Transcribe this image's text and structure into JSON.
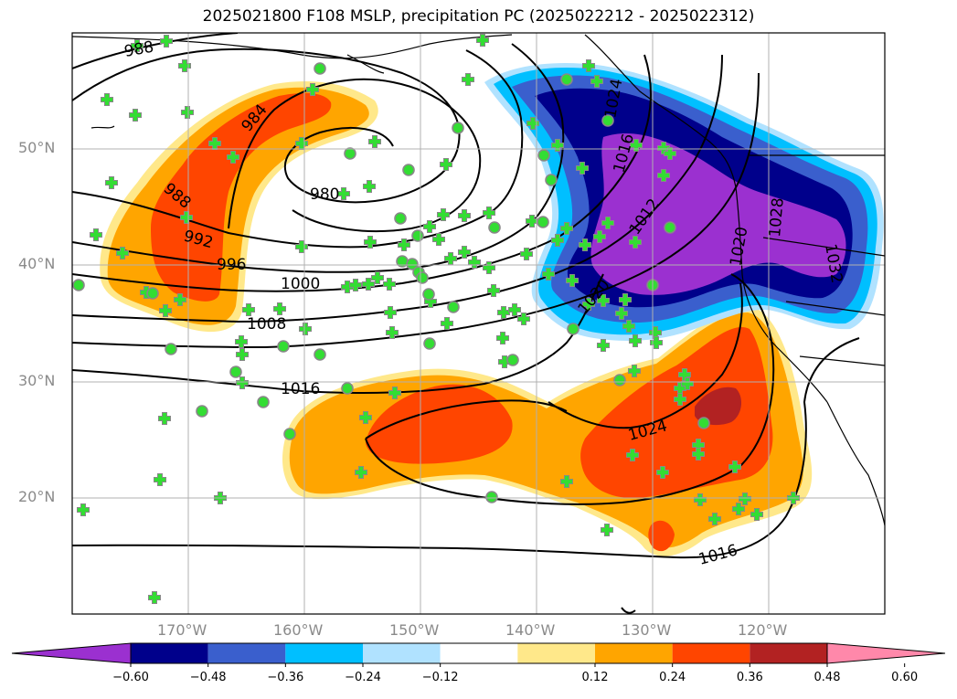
{
  "title": "2025021800 F108 MSLP, precipitation PC (2025022212 - 2025022312)",
  "map": {
    "lat_labels": [
      "50°N",
      "40°N",
      "30°N",
      "20°N"
    ],
    "lon_labels": [
      "170°W",
      "160°W",
      "150°W",
      "140°W",
      "130°W",
      "120°W"
    ],
    "isobar_labels": [
      "988",
      "984",
      "988",
      "980",
      "992",
      "996",
      "1000",
      "1008",
      "1016",
      "1016",
      "1024",
      "1012",
      "1016",
      "1020",
      "1024",
      "1028",
      "1032",
      "1020"
    ]
  },
  "colorbar": {
    "ticks": [
      "−0.60",
      "−0.48",
      "−0.36",
      "−0.24",
      "−0.12",
      "0.12",
      "0.24",
      "0.36",
      "0.48",
      "0.60"
    ],
    "colors": [
      "#9b30d0",
      "#00008b",
      "#3a5fcd",
      "#00bfff",
      "#b0e2ff",
      "#ffffff",
      "#ffe88a",
      "#ffa500",
      "#ff4500",
      "#b22222",
      "#ff88aa"
    ]
  },
  "markers": {
    "plus_color": "#33dd33",
    "dot_color": "#33ee33",
    "dot_edge": "#888888"
  }
}
